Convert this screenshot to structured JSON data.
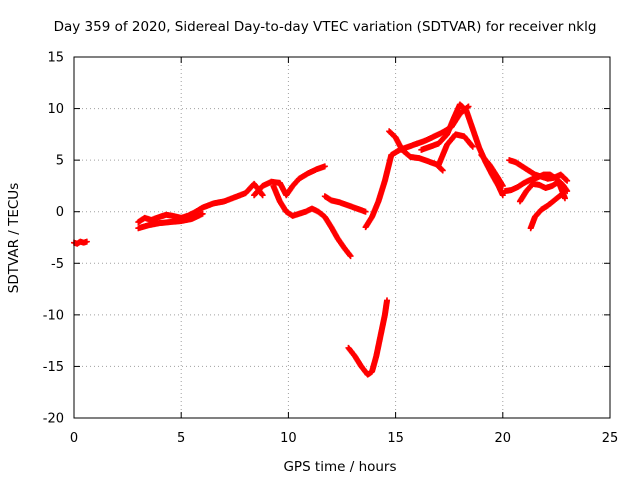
{
  "chart_data": {
    "type": "scatter",
    "title": "Day 359 of 2020, Sidereal Day-to-day VTEC variation (SDTVAR) for receiver nklg",
    "xlabel": "GPS time / hours",
    "ylabel": "SDTVAR / TECUs",
    "xlim": [
      0,
      25
    ],
    "ylim": [
      -20,
      15
    ],
    "xticks": [
      0,
      5,
      10,
      15,
      20,
      25
    ],
    "yticks": [
      -20,
      -15,
      -10,
      -5,
      0,
      5,
      10,
      15
    ],
    "grid": true,
    "marker": "plus",
    "color": "#ff0000",
    "series": [
      {
        "name": "s1",
        "x": [
          0.0,
          0.15,
          0.3,
          0.45,
          0.6
        ],
        "y": [
          -3.0,
          -3.1,
          -2.9,
          -3.0,
          -2.9
        ]
      },
      {
        "name": "s2",
        "x": [
          3.0,
          3.3,
          3.6,
          4.0,
          4.3,
          4.6,
          5.0,
          5.3,
          5.6,
          6.0,
          6.5,
          7.0,
          7.5,
          8.0,
          8.4,
          8.8
        ],
        "y": [
          -1.0,
          -0.6,
          -0.8,
          -0.5,
          -0.3,
          -0.4,
          -0.6,
          -0.4,
          -0.1,
          0.4,
          0.8,
          1.0,
          1.4,
          1.8,
          2.7,
          1.6
        ]
      },
      {
        "name": "s3",
        "x": [
          3.0,
          3.5,
          4.0,
          4.5,
          5.0,
          5.5,
          6.0
        ],
        "y": [
          -1.6,
          -1.3,
          -1.1,
          -1.0,
          -0.9,
          -0.7,
          -0.2
        ]
      },
      {
        "name": "s4",
        "x": [
          8.4,
          8.8,
          9.2,
          9.6,
          9.9,
          10.2,
          10.5,
          10.9,
          11.3,
          11.7
        ],
        "y": [
          1.6,
          2.5,
          2.9,
          2.8,
          1.6,
          2.5,
          3.2,
          3.7,
          4.1,
          4.4
        ]
      },
      {
        "name": "s5",
        "x": [
          9.3,
          9.6,
          9.9,
          10.2,
          10.5,
          10.8,
          11.1,
          11.4,
          11.7,
          12.0,
          12.3,
          12.6,
          12.9
        ],
        "y": [
          2.5,
          1.0,
          0.0,
          -0.4,
          -0.2,
          0.0,
          0.3,
          0.0,
          -0.5,
          -1.5,
          -2.6,
          -3.5,
          -4.3
        ]
      },
      {
        "name": "s6",
        "x": [
          11.7,
          12.0,
          12.4,
          12.8,
          13.2,
          13.6
        ],
        "y": [
          1.5,
          1.1,
          0.9,
          0.6,
          0.3,
          0.0
        ]
      },
      {
        "name": "s7",
        "x": [
          13.6,
          13.9,
          14.2,
          14.5,
          14.8,
          15.2,
          15.6,
          16.0
        ],
        "y": [
          -1.5,
          -0.5,
          1.0,
          3.0,
          5.5,
          6.0,
          6.3,
          6.6
        ]
      },
      {
        "name": "s8",
        "x": [
          14.7,
          15.0,
          15.3,
          15.7,
          16.1,
          16.5,
          16.9,
          17.2
        ],
        "y": [
          7.8,
          7.2,
          6.0,
          5.3,
          5.2,
          4.9,
          4.6,
          4.0
        ]
      },
      {
        "name": "s9",
        "x": [
          16.0,
          16.4,
          16.8,
          17.2,
          17.6,
          18.0,
          18.4
        ],
        "y": [
          6.6,
          6.9,
          7.3,
          7.7,
          8.2,
          9.5,
          10.2
        ]
      },
      {
        "name": "s10",
        "x": [
          16.2,
          16.6,
          17.0,
          17.4,
          17.7,
          18.0,
          18.3,
          18.6,
          18.9,
          19.2,
          19.5,
          19.8,
          20.0
        ],
        "y": [
          6.0,
          6.3,
          6.6,
          7.5,
          9.0,
          10.4,
          9.8,
          8.0,
          6.2,
          4.8,
          3.6,
          2.5,
          1.6
        ]
      },
      {
        "name": "s11",
        "x": [
          17.0,
          17.4,
          17.8,
          18.2,
          18.6
        ],
        "y": [
          4.5,
          6.5,
          7.5,
          7.3,
          6.3
        ]
      },
      {
        "name": "s12",
        "x": [
          19.0,
          19.4,
          19.8,
          20.0
        ],
        "y": [
          5.5,
          4.5,
          3.2,
          2.5
        ]
      },
      {
        "name": "s13",
        "x": [
          20.3,
          20.6,
          20.9,
          21.2,
          21.5,
          21.8,
          22.1,
          22.4,
          22.7,
          23.0
        ],
        "y": [
          5.0,
          4.8,
          4.4,
          4.0,
          3.6,
          3.4,
          3.2,
          3.3,
          3.6,
          3.0
        ]
      },
      {
        "name": "s14",
        "x": [
          20.1,
          20.4,
          20.7,
          21.0,
          21.3,
          21.6,
          21.9,
          22.2,
          22.5,
          22.8,
          23.0
        ],
        "y": [
          2.0,
          2.1,
          2.4,
          2.8,
          3.1,
          3.3,
          3.6,
          3.6,
          3.2,
          2.6,
          2.0
        ]
      },
      {
        "name": "s15",
        "x": [
          20.8,
          21.1,
          21.4,
          21.7,
          22.0,
          22.3,
          22.6,
          22.9
        ],
        "y": [
          1.0,
          2.0,
          2.7,
          2.6,
          2.3,
          2.5,
          2.9,
          1.3
        ]
      },
      {
        "name": "s16",
        "x": [
          21.3,
          21.5,
          21.8,
          22.1,
          22.4,
          22.7
        ],
        "y": [
          -1.6,
          -0.5,
          0.2,
          0.6,
          1.1,
          1.6
        ]
      },
      {
        "name": "s17",
        "x": [
          12.8,
          13.1,
          13.4,
          13.7,
          13.9,
          14.1,
          14.3,
          14.5,
          14.6
        ],
        "y": [
          -13.2,
          -14.0,
          -15.0,
          -15.8,
          -15.5,
          -14.0,
          -12.0,
          -10.0,
          -8.6
        ]
      }
    ]
  }
}
